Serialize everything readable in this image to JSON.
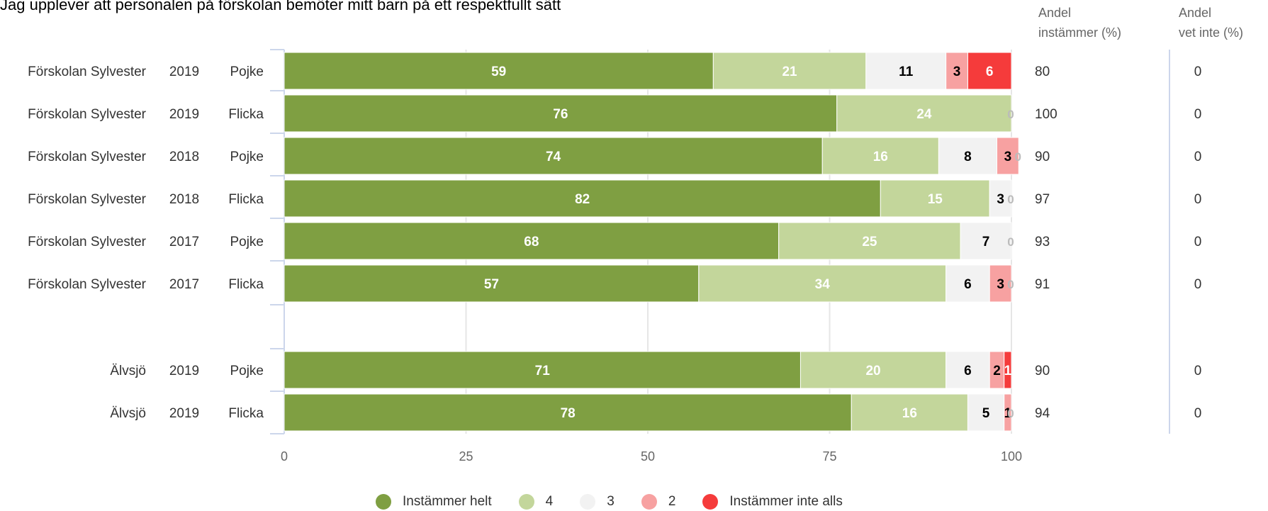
{
  "chart_data": {
    "type": "bar",
    "orientation": "horizontal",
    "stacked": true,
    "title": "Jag upplever att personalen på förskolan bemöter mitt barn på ett respektfullt sätt",
    "xlim": [
      0,
      100
    ],
    "x_ticks": [
      "0",
      "25",
      "50",
      "75",
      "100"
    ],
    "legend_position": "bottom",
    "columns": {
      "agree_header": "Andel\ninstämmer (%)",
      "dontknow_header": "Andel\nvet inte (%)"
    },
    "series": [
      {
        "name": "Instämmer helt",
        "color": "#7f9f42"
      },
      {
        "name": "4",
        "color": "#c3d69b"
      },
      {
        "name": "3",
        "color": "#f2f2f2"
      },
      {
        "name": "2",
        "color": "#f7a1a1"
      },
      {
        "name": "Instämmer inte alls",
        "color": "#f53b3b"
      }
    ],
    "rows": [
      {
        "school": "Förskolan Sylvester",
        "year": "2019",
        "gender": "Pojke",
        "values": [
          59,
          21,
          11,
          3,
          6
        ],
        "labels": [
          "59",
          "21",
          "11",
          "3",
          "6"
        ],
        "agree": "80",
        "dontknow": "0"
      },
      {
        "school": "Förskolan Sylvester",
        "year": "2019",
        "gender": "Flicka",
        "values": [
          76,
          24,
          0,
          0,
          0
        ],
        "labels": [
          "76",
          "24",
          "",
          "",
          "0"
        ],
        "agree": "100",
        "dontknow": "0"
      },
      {
        "school": "Förskolan Sylvester",
        "year": "2018",
        "gender": "Pojke",
        "values": [
          74,
          16,
          8,
          3,
          0
        ],
        "labels": [
          "74",
          "16",
          "8",
          "3",
          "0"
        ],
        "agree": "90",
        "dontknow": "0"
      },
      {
        "school": "Förskolan Sylvester",
        "year": "2018",
        "gender": "Flicka",
        "values": [
          82,
          15,
          3,
          0,
          0
        ],
        "labels": [
          "82",
          "15",
          "3",
          "",
          "0"
        ],
        "agree": "97",
        "dontknow": "0"
      },
      {
        "school": "Förskolan Sylvester",
        "year": "2017",
        "gender": "Pojke",
        "values": [
          68,
          25,
          7,
          0,
          0
        ],
        "labels": [
          "68",
          "25",
          "7",
          "",
          "0"
        ],
        "agree": "93",
        "dontknow": "0"
      },
      {
        "school": "Förskolan Sylvester",
        "year": "2017",
        "gender": "Flicka",
        "values": [
          57,
          34,
          6,
          3,
          0
        ],
        "labels": [
          "57",
          "34",
          "6",
          "3",
          "0"
        ],
        "agree": "91",
        "dontknow": "0"
      },
      {
        "school": "Älvsjö",
        "year": "2019",
        "gender": "Pojke",
        "values": [
          71,
          20,
          6,
          2,
          1
        ],
        "labels": [
          "71",
          "20",
          "6",
          "2",
          "1"
        ],
        "agree": "90",
        "dontknow": "0"
      },
      {
        "school": "Älvsjö",
        "year": "2019",
        "gender": "Flicka",
        "values": [
          78,
          16,
          5,
          1,
          0
        ],
        "labels": [
          "78",
          "16",
          "5",
          "1",
          "0"
        ],
        "agree": "94",
        "dontknow": "0"
      }
    ]
  }
}
